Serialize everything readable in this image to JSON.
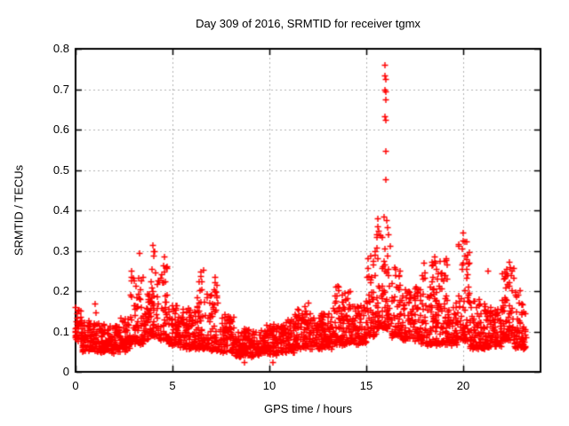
{
  "title": "Day 309 of 2016, SRMTID for receiver tgmx",
  "chart_data": {
    "type": "scatter",
    "title": "Day 309 of 2016, SRMTID for receiver tgmx",
    "xlabel": "GPS time / hours",
    "ylabel": "SRMTID / TECUs",
    "xlim": [
      0,
      24
    ],
    "ylim": [
      0,
      0.8
    ],
    "x_ticks": [
      0,
      5,
      10,
      15,
      20
    ],
    "y_ticks": [
      0,
      0.1,
      0.2,
      0.3,
      0.4,
      0.5,
      0.6,
      0.7,
      0.8
    ],
    "x_tick_labels": [
      "0",
      "5",
      "10",
      "15",
      "20"
    ],
    "y_tick_labels": [
      "0",
      "0.1",
      "0.2",
      "0.3",
      "0.4",
      "0.5",
      "0.6",
      "0.7",
      "0.8"
    ],
    "grid": true,
    "legend": false,
    "marker": "plus",
    "marker_color": "#ff0000",
    "grid_color": "#b0b0b0",
    "border_color": "#000000",
    "points_per_hour": 115,
    "envelope_comment": "dense scatter band per time segment: [hour_start, hour_end, value_low, value_high]",
    "envelope": [
      [
        0.0,
        0.35,
        0.08,
        0.17
      ],
      [
        0.35,
        0.9,
        0.055,
        0.13
      ],
      [
        0.9,
        1.6,
        0.05,
        0.12
      ],
      [
        1.6,
        2.3,
        0.05,
        0.115
      ],
      [
        2.3,
        2.8,
        0.055,
        0.14
      ],
      [
        2.8,
        3.5,
        0.07,
        0.29
      ],
      [
        3.5,
        3.85,
        0.08,
        0.22
      ],
      [
        3.85,
        4.3,
        0.09,
        0.31
      ],
      [
        4.3,
        4.8,
        0.08,
        0.27
      ],
      [
        4.8,
        5.4,
        0.07,
        0.18
      ],
      [
        5.4,
        6.2,
        0.06,
        0.16
      ],
      [
        6.2,
        6.8,
        0.06,
        0.25
      ],
      [
        6.8,
        7.4,
        0.055,
        0.23
      ],
      [
        7.4,
        8.2,
        0.05,
        0.14
      ],
      [
        8.2,
        9.6,
        0.04,
        0.105
      ],
      [
        9.6,
        10.5,
        0.045,
        0.115
      ],
      [
        10.5,
        11.3,
        0.05,
        0.13
      ],
      [
        11.3,
        12.3,
        0.06,
        0.165
      ],
      [
        12.3,
        13.3,
        0.06,
        0.15
      ],
      [
        13.3,
        14.2,
        0.07,
        0.21
      ],
      [
        14.2,
        15.0,
        0.07,
        0.17
      ],
      [
        15.0,
        15.5,
        0.09,
        0.3
      ],
      [
        15.5,
        16.25,
        0.11,
        0.38
      ],
      [
        16.25,
        16.8,
        0.09,
        0.26
      ],
      [
        16.8,
        17.8,
        0.08,
        0.21
      ],
      [
        17.8,
        19.2,
        0.07,
        0.28
      ],
      [
        19.2,
        19.75,
        0.07,
        0.17
      ],
      [
        19.75,
        20.35,
        0.08,
        0.33
      ],
      [
        20.35,
        21.4,
        0.06,
        0.18
      ],
      [
        21.4,
        22.0,
        0.065,
        0.16
      ],
      [
        22.0,
        22.65,
        0.08,
        0.27
      ],
      [
        22.65,
        23.25,
        0.06,
        0.2
      ]
    ],
    "extra_points_comment": "distinct readable points [hour, value], incl. the large spike near hour 16",
    "extra_points": [
      [
        15.98,
        0.76
      ],
      [
        15.99,
        0.735
      ],
      [
        16.01,
        0.725
      ],
      [
        15.99,
        0.7
      ],
      [
        16.02,
        0.695
      ],
      [
        16.0,
        0.675
      ],
      [
        15.97,
        0.632
      ],
      [
        16.0,
        0.625
      ],
      [
        16.0,
        0.547
      ],
      [
        16.02,
        0.477
      ],
      [
        15.93,
        0.385
      ],
      [
        16.04,
        0.375
      ],
      [
        15.6,
        0.36
      ],
      [
        15.65,
        0.35
      ],
      [
        15.55,
        0.335
      ],
      [
        15.45,
        0.3
      ],
      [
        1.0,
        0.17
      ],
      [
        1.05,
        0.148
      ],
      [
        8.7,
        0.025
      ],
      [
        10.2,
        0.025
      ],
      [
        12.0,
        0.172
      ],
      [
        18.55,
        0.285
      ],
      [
        18.6,
        0.27
      ],
      [
        20.0,
        0.345
      ],
      [
        20.03,
        0.325
      ],
      [
        19.97,
        0.305
      ],
      [
        21.3,
        0.25
      ],
      [
        22.4,
        0.272
      ],
      [
        22.45,
        0.26
      ],
      [
        3.3,
        0.295
      ],
      [
        4.0,
        0.315
      ],
      [
        4.05,
        0.3
      ],
      [
        4.6,
        0.285
      ],
      [
        6.6,
        0.252
      ],
      [
        7.2,
        0.235
      ]
    ]
  }
}
